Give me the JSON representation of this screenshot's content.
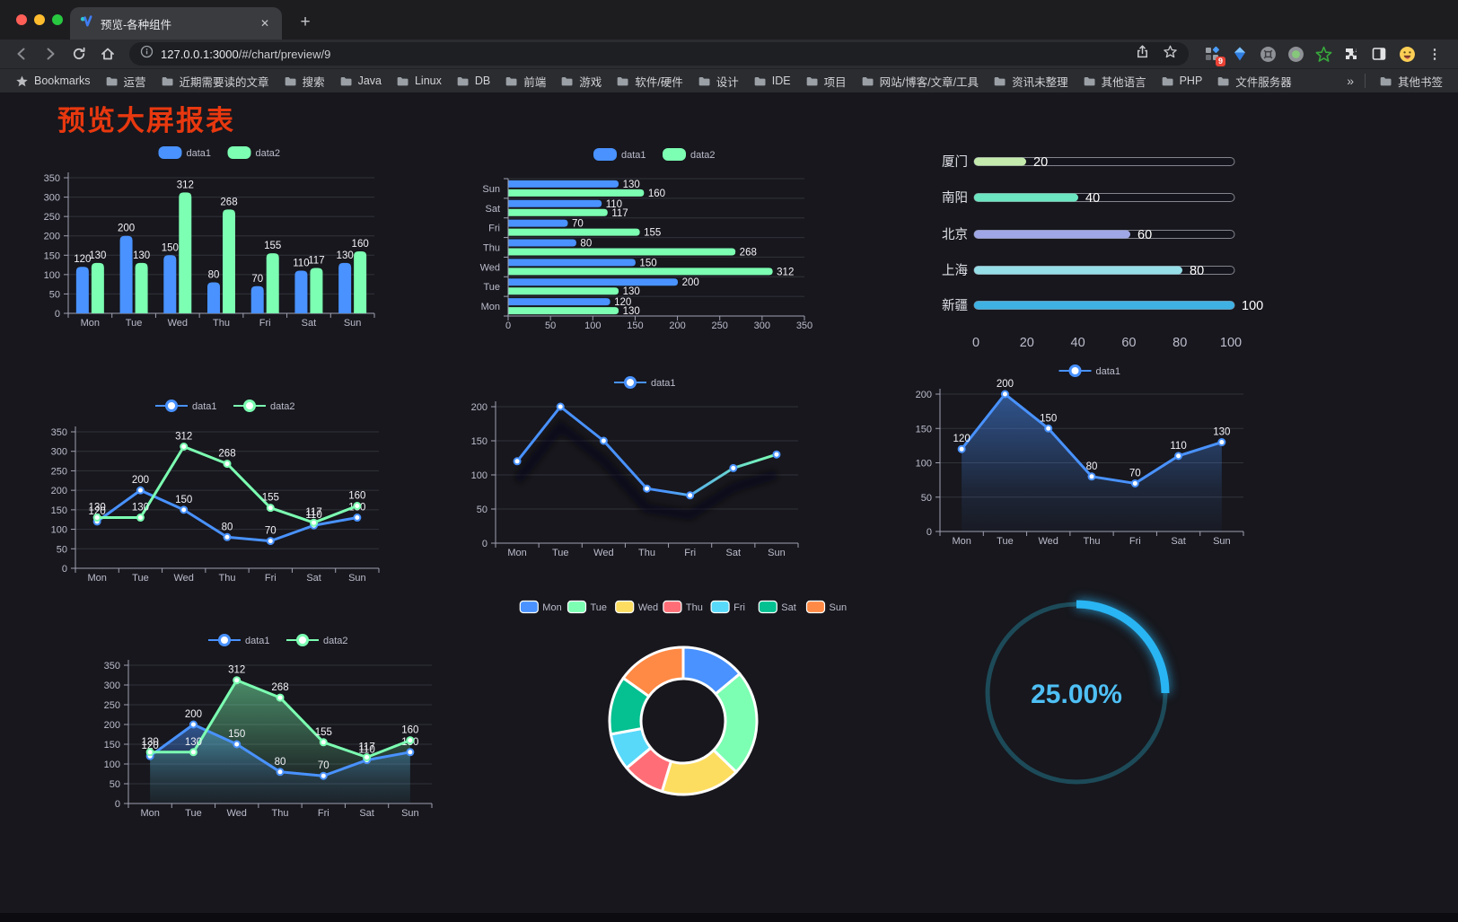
{
  "browser": {
    "traffic_lights": [
      "#ff5f57",
      "#febc2e",
      "#28c840"
    ],
    "tab": {
      "title": "预览-各种组件",
      "close_glyph": "✕"
    },
    "new_tab_glyph": "+",
    "url_host": "127.0.0.1:3000",
    "url_path": "/#/chart/preview/9",
    "extension_badge": "9",
    "menu_glyph": "⋮",
    "bookmarks_bar": {
      "first_label": "Bookmarks",
      "folders": [
        "运营",
        "近期需要读的文章",
        "搜索",
        "Java",
        "Linux",
        "DB",
        "前端",
        "游戏",
        "软件/硬件",
        "设计",
        "IDE",
        "项目",
        "网站/博客/文章/工具",
        "资讯未整理",
        "其他语言",
        "PHP",
        "文件服务器"
      ],
      "overflow_glyph": "»",
      "other_bookmarks": "其他书签"
    }
  },
  "page": {
    "title": "预览大屏报表",
    "title_color": "#e8380f",
    "background": "#17171d"
  },
  "chart_data": [
    {
      "id": "bar-vertical",
      "type": "bar",
      "categories": [
        "Mon",
        "Tue",
        "Wed",
        "Thu",
        "Fri",
        "Sat",
        "Sun"
      ],
      "series": [
        {
          "name": "data1",
          "color": "#4992ff",
          "values": [
            120,
            200,
            150,
            80,
            70,
            110,
            130
          ]
        },
        {
          "name": "data2",
          "color": "#7cffb2",
          "values": [
            130,
            130,
            312,
            268,
            155,
            117,
            160
          ]
        }
      ],
      "ylim": [
        0,
        350
      ],
      "yticks": [
        0,
        50,
        100,
        150,
        200,
        250,
        300,
        350
      ],
      "legend_position": "top",
      "value_labels": true,
      "grid": true
    },
    {
      "id": "bar-horizontal",
      "type": "bar-horizontal",
      "categories": [
        "Mon",
        "Tue",
        "Wed",
        "Thu",
        "Fri",
        "Sat",
        "Sun"
      ],
      "category_display_order": "Sun at top",
      "series": [
        {
          "name": "data1",
          "color": "#4992ff",
          "values": [
            120,
            200,
            150,
            80,
            70,
            110,
            130
          ]
        },
        {
          "name": "data2",
          "color": "#7cffb2",
          "values": [
            130,
            130,
            312,
            268,
            155,
            117,
            160
          ]
        }
      ],
      "xlim": [
        0,
        350
      ],
      "xticks": [
        0,
        50,
        100,
        150,
        200,
        250,
        300,
        350
      ],
      "legend_position": "top",
      "value_labels": true
    },
    {
      "id": "progress-bars",
      "type": "bar-progress",
      "categories": [
        "厦门",
        "南阳",
        "北京",
        "上海",
        "新疆"
      ],
      "values": [
        20,
        40,
        60,
        80,
        100
      ],
      "colors": [
        "#c4ebad",
        "#6be6c1",
        "#a0a7e6",
        "#96dee8",
        "#3fb1e3"
      ],
      "xlim": [
        0,
        100
      ],
      "xticks": [
        0,
        20,
        40,
        60,
        80,
        100
      ],
      "value_labels": true
    },
    {
      "id": "line-two-series",
      "type": "line",
      "categories": [
        "Mon",
        "Tue",
        "Wed",
        "Thu",
        "Fri",
        "Sat",
        "Sun"
      ],
      "series": [
        {
          "name": "data1",
          "color": "#4992ff",
          "values": [
            120,
            200,
            150,
            80,
            70,
            110,
            130
          ]
        },
        {
          "name": "data2",
          "color": "#7cffb2",
          "values": [
            130,
            130,
            312,
            268,
            155,
            117,
            160
          ]
        }
      ],
      "ylim": [
        0,
        350
      ],
      "yticks": [
        0,
        50,
        100,
        150,
        200,
        250,
        300,
        350
      ],
      "legend_position": "top",
      "value_labels": true
    },
    {
      "id": "line-gradient",
      "type": "line",
      "categories": [
        "Mon",
        "Tue",
        "Wed",
        "Thu",
        "Fri",
        "Sat",
        "Sun"
      ],
      "series": [
        {
          "name": "data1",
          "gradient": [
            "#4992ff",
            "#7cffb2"
          ],
          "values": [
            120,
            200,
            150,
            80,
            70,
            110,
            130
          ]
        }
      ],
      "ylim": [
        0,
        200
      ],
      "yticks": [
        0,
        50,
        100,
        150,
        200
      ],
      "legend_position": "top",
      "value_labels": false,
      "shadow": true
    },
    {
      "id": "area-single",
      "type": "area",
      "categories": [
        "Mon",
        "Tue",
        "Wed",
        "Thu",
        "Fri",
        "Sat",
        "Sun"
      ],
      "series": [
        {
          "name": "data1",
          "color": "#4992ff",
          "values": [
            120,
            200,
            150,
            80,
            70,
            110,
            130
          ]
        }
      ],
      "ylim": [
        0,
        200
      ],
      "yticks": [
        0,
        50,
        100,
        150,
        200
      ],
      "legend_position": "top",
      "value_labels": true
    },
    {
      "id": "area-two-series",
      "type": "area",
      "categories": [
        "Mon",
        "Tue",
        "Wed",
        "Thu",
        "Fri",
        "Sat",
        "Sun"
      ],
      "series": [
        {
          "name": "data1",
          "color": "#4992ff",
          "values": [
            120,
            200,
            150,
            80,
            70,
            110,
            130
          ]
        },
        {
          "name": "data2",
          "color": "#7cffb2",
          "values": [
            130,
            130,
            312,
            268,
            155,
            117,
            160
          ]
        }
      ],
      "ylim": [
        0,
        350
      ],
      "yticks": [
        0,
        50,
        100,
        150,
        200,
        250,
        300,
        350
      ],
      "legend_position": "top",
      "value_labels": true
    },
    {
      "id": "donut",
      "type": "pie",
      "labels": [
        "Mon",
        "Tue",
        "Wed",
        "Thu",
        "Fri",
        "Sat",
        "Sun"
      ],
      "values": [
        120,
        200,
        150,
        80,
        70,
        110,
        130
      ],
      "colors": [
        "#4992ff",
        "#7cffb2",
        "#fddd60",
        "#ff6e76",
        "#58d9f9",
        "#05c091",
        "#ff8a45"
      ],
      "inner_radius_ratio": 0.58,
      "legend_position": "top",
      "border_color": "#ffffff"
    },
    {
      "id": "gauge",
      "type": "gauge",
      "value": 25,
      "label": "25.00%",
      "color": "#29b5f3",
      "track_color": "#1d4a58",
      "text_color": "#4fc0f5"
    }
  ]
}
